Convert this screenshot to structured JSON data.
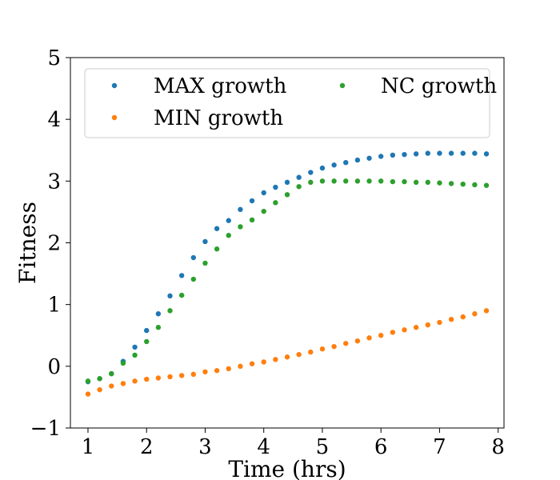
{
  "chart_data": {
    "type": "scatter",
    "xlabel": "Time (hrs)",
    "ylabel": "Fitness",
    "xlim": [
      0.7,
      8.1
    ],
    "ylim": [
      -1,
      5
    ],
    "xticks": [
      1,
      2,
      3,
      4,
      5,
      6,
      7,
      8
    ],
    "yticks": [
      -1,
      0,
      1,
      2,
      3,
      4,
      5
    ],
    "xtick_labels": [
      "1",
      "2",
      "3",
      "4",
      "5",
      "6",
      "7",
      "8"
    ],
    "ytick_labels": [
      "−1",
      "0",
      "1",
      "2",
      "3",
      "4",
      "5"
    ],
    "grid": false,
    "legend_position": "top",
    "legend_columns": 2,
    "series": [
      {
        "name": "MAX growth",
        "color": "#1f77b4",
        "x": [
          1.0,
          1.2,
          1.4,
          1.6,
          1.8,
          2.0,
          2.2,
          2.4,
          2.6,
          2.8,
          3.0,
          3.2,
          3.4,
          3.6,
          3.8,
          4.0,
          4.2,
          4.4,
          4.6,
          4.8,
          5.0,
          5.2,
          5.4,
          5.6,
          5.8,
          6.0,
          6.2,
          6.4,
          6.6,
          6.8,
          7.0,
          7.2,
          7.4,
          7.6,
          7.8
        ],
        "y": [
          -0.25,
          -0.2,
          -0.12,
          0.08,
          0.31,
          0.58,
          0.85,
          1.14,
          1.47,
          1.76,
          2.02,
          2.23,
          2.36,
          2.54,
          2.68,
          2.81,
          2.9,
          2.98,
          3.06,
          3.14,
          3.21,
          3.26,
          3.3,
          3.34,
          3.37,
          3.4,
          3.42,
          3.43,
          3.44,
          3.45,
          3.45,
          3.45,
          3.45,
          3.45,
          3.44
        ]
      },
      {
        "name": "MIN growth",
        "color": "#ff7f0e",
        "x": [
          1.0,
          1.2,
          1.4,
          1.6,
          1.8,
          2.0,
          2.2,
          2.4,
          2.6,
          2.8,
          3.0,
          3.2,
          3.4,
          3.6,
          3.8,
          4.0,
          4.2,
          4.4,
          4.6,
          4.8,
          5.0,
          5.2,
          5.4,
          5.6,
          5.8,
          6.0,
          6.2,
          6.4,
          6.6,
          6.8,
          7.0,
          7.2,
          7.4,
          7.6,
          7.8
        ],
        "y": [
          -0.45,
          -0.38,
          -0.32,
          -0.28,
          -0.24,
          -0.21,
          -0.19,
          -0.17,
          -0.15,
          -0.13,
          -0.09,
          -0.07,
          -0.04,
          0.0,
          0.04,
          0.07,
          0.11,
          0.15,
          0.19,
          0.23,
          0.28,
          0.32,
          0.37,
          0.41,
          0.46,
          0.5,
          0.55,
          0.59,
          0.63,
          0.67,
          0.71,
          0.76,
          0.8,
          0.85,
          0.9
        ]
      },
      {
        "name": "NC growth",
        "color": "#2ca02c",
        "x": [
          1.0,
          1.2,
          1.4,
          1.6,
          1.8,
          2.0,
          2.2,
          2.4,
          2.6,
          2.8,
          3.0,
          3.2,
          3.4,
          3.6,
          3.8,
          4.0,
          4.2,
          4.4,
          4.6,
          4.8,
          5.0,
          5.2,
          5.4,
          5.6,
          5.8,
          6.0,
          6.2,
          6.4,
          6.6,
          6.8,
          7.0,
          7.2,
          7.4,
          7.6,
          7.8
        ],
        "y": [
          -0.24,
          -0.2,
          -0.12,
          0.05,
          0.18,
          0.4,
          0.63,
          0.9,
          1.15,
          1.41,
          1.67,
          1.9,
          2.12,
          2.26,
          2.37,
          2.51,
          2.65,
          2.78,
          2.91,
          2.98,
          3.0,
          3.0,
          3.0,
          3.0,
          3.0,
          3.0,
          2.99,
          2.99,
          2.98,
          2.98,
          2.97,
          2.96,
          2.95,
          2.94,
          2.93
        ]
      }
    ]
  }
}
